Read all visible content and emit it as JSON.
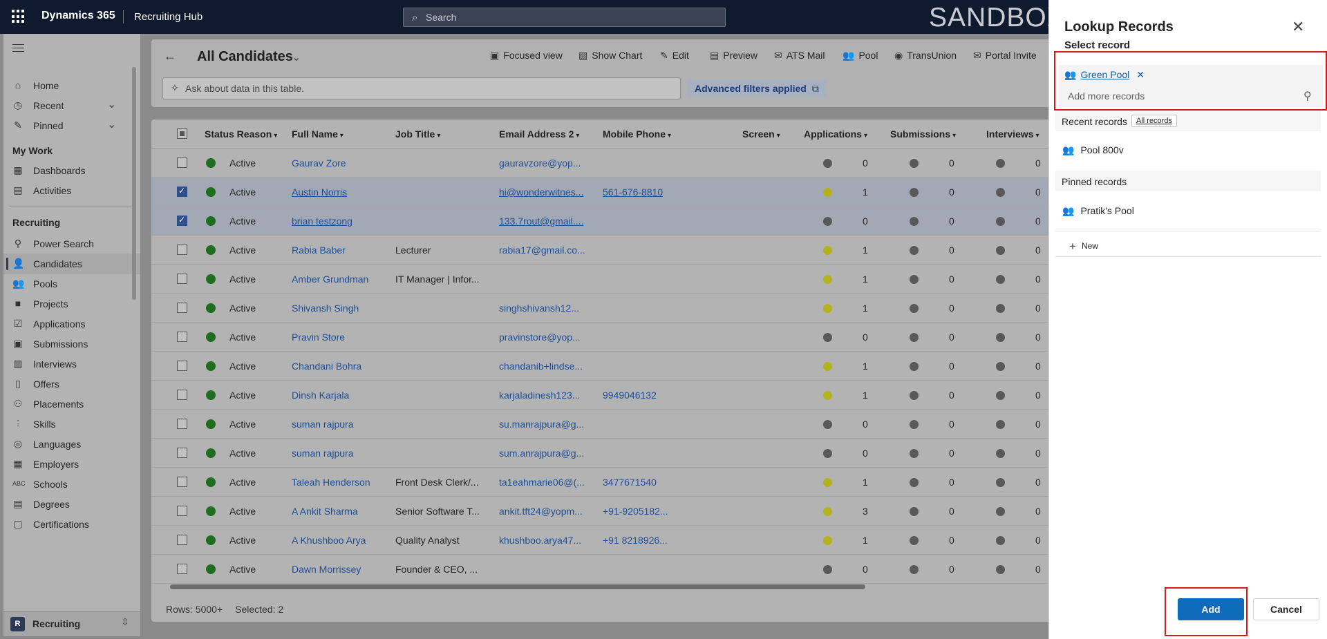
{
  "topbar": {
    "brand": "Dynamics 365",
    "app_name": "Recruiting Hub",
    "search_placeholder": "Search",
    "environment_banner": "SANDBOX"
  },
  "sidebar": {
    "items_top": [
      {
        "label": "Home",
        "icon": "home-icon"
      },
      {
        "label": "Recent",
        "icon": "clock-icon"
      },
      {
        "label": "Pinned",
        "icon": "pin-icon"
      }
    ],
    "section_my_work": "My Work",
    "items_my_work": [
      {
        "label": "Dashboards",
        "icon": "dashboard-icon"
      },
      {
        "label": "Activities",
        "icon": "clipboard-icon"
      }
    ],
    "section_recruiting": "Recruiting",
    "items_recruiting": [
      {
        "label": "Power Search",
        "icon": "magnifier-icon"
      },
      {
        "label": "Candidates",
        "icon": "person-icon"
      },
      {
        "label": "Pools",
        "icon": "people-group-icon"
      },
      {
        "label": "Projects",
        "icon": "briefcase-icon"
      },
      {
        "label": "Applications",
        "icon": "checklist-icon"
      },
      {
        "label": "Submissions",
        "icon": "inbox-icon"
      },
      {
        "label": "Interviews",
        "icon": "calendar-icon"
      },
      {
        "label": "Offers",
        "icon": "document-icon"
      },
      {
        "label": "Placements",
        "icon": "people-icon"
      },
      {
        "label": "Skills",
        "icon": "skills-icon"
      },
      {
        "label": "Languages",
        "icon": "globe-icon"
      },
      {
        "label": "Employers",
        "icon": "building-icon"
      },
      {
        "label": "Schools",
        "icon": "abc-icon"
      },
      {
        "label": "Degrees",
        "icon": "calendar-grid-icon"
      },
      {
        "label": "Certifications",
        "icon": "certificate-icon"
      }
    ],
    "active_item": "Candidates",
    "area_badge": "R",
    "area_label": "Recruiting"
  },
  "header": {
    "view_title": "All Candidates",
    "commands": [
      {
        "label": "Focused view",
        "icon": "focused-view-icon"
      },
      {
        "label": "Show Chart",
        "icon": "chart-icon"
      },
      {
        "label": "Edit",
        "icon": "pencil-icon"
      },
      {
        "label": "Preview",
        "icon": "preview-icon"
      },
      {
        "label": "ATS Mail",
        "icon": "mail-icon"
      },
      {
        "label": "Pool",
        "icon": "people-group-icon"
      },
      {
        "label": "TransUnion",
        "icon": "transunion-icon"
      },
      {
        "label": "Portal Invite",
        "icon": "envelope-icon"
      }
    ],
    "ask_placeholder": "Ask about data in this table.",
    "filters_label": "Advanced filters applied"
  },
  "grid": {
    "columns": [
      "Status Reason",
      "Full Name",
      "Job Title",
      "Email Address 2",
      "Mobile Phone",
      "Screen",
      "Applications",
      "Submissions",
      "Interviews"
    ],
    "rows": [
      {
        "status": "Active",
        "name": "Gaurav Zore",
        "job": "",
        "email": "gauravzore@yop...",
        "phone": "",
        "selected": false,
        "apps": "0",
        "apps_color": "gray",
        "subs": "0",
        "ints": "0"
      },
      {
        "status": "Active",
        "name": "Austin Norris",
        "job": "",
        "email": "hi@wonderwitnes...",
        "phone": "561-676-8810",
        "selected": true,
        "apps": "1",
        "apps_color": "yellow",
        "subs": "0",
        "ints": "0"
      },
      {
        "status": "Active",
        "name": "brian testzong",
        "job": "",
        "email": "133.7rout@gmail....",
        "phone": "",
        "selected": true,
        "apps": "0",
        "apps_color": "gray",
        "subs": "0",
        "ints": "0"
      },
      {
        "status": "Active",
        "name": "Rabia Baber",
        "job": "Lecturer",
        "email": "rabia17@gmail.co...",
        "phone": "",
        "selected": false,
        "apps": "1",
        "apps_color": "yellow",
        "subs": "0",
        "ints": "0"
      },
      {
        "status": "Active",
        "name": "Amber Grundman",
        "job": "IT Manager | Infor...",
        "email": "",
        "phone": "",
        "selected": false,
        "apps": "1",
        "apps_color": "yellow",
        "subs": "0",
        "ints": "0"
      },
      {
        "status": "Active",
        "name": "Shivansh Singh",
        "job": "",
        "email": "singhshivansh12...",
        "phone": "",
        "selected": false,
        "apps": "1",
        "apps_color": "yellow",
        "subs": "0",
        "ints": "0"
      },
      {
        "status": "Active",
        "name": "Pravin Store",
        "job": "",
        "email": "pravinstore@yop...",
        "phone": "",
        "selected": false,
        "apps": "0",
        "apps_color": "gray",
        "subs": "0",
        "ints": "0"
      },
      {
        "status": "Active",
        "name": "Chandani Bohra",
        "job": "",
        "email": "chandanib+lindse...",
        "phone": "",
        "selected": false,
        "apps": "1",
        "apps_color": "yellow",
        "subs": "0",
        "ints": "0"
      },
      {
        "status": "Active",
        "name": "Dinsh Karjala",
        "job": "",
        "email": "karjaladinesh123...",
        "phone": "9949046132",
        "selected": false,
        "apps": "1",
        "apps_color": "yellow",
        "subs": "0",
        "ints": "0"
      },
      {
        "status": "Active",
        "name": "suman rajpura",
        "job": "",
        "email": "su.manrajpura@g...",
        "phone": "",
        "selected": false,
        "apps": "0",
        "apps_color": "gray",
        "subs": "0",
        "ints": "0"
      },
      {
        "status": "Active",
        "name": "suman rajpura",
        "job": "",
        "email": "sum.anrajpura@g...",
        "phone": "",
        "selected": false,
        "apps": "0",
        "apps_color": "gray",
        "subs": "0",
        "ints": "0"
      },
      {
        "status": "Active",
        "name": "Taleah Henderson",
        "job": "Front Desk Clerk/...",
        "email": "ta1eahmarie06@(...",
        "phone": "3477671540",
        "selected": false,
        "apps": "1",
        "apps_color": "yellow",
        "subs": "0",
        "ints": "0"
      },
      {
        "status": "Active",
        "name": "A Ankit Sharma",
        "job": "Senior Software T...",
        "email": "ankit.tft24@yopm...",
        "phone": "+91-9205182...",
        "selected": false,
        "apps": "3",
        "apps_color": "yellow",
        "subs": "0",
        "ints": "0"
      },
      {
        "status": "Active",
        "name": "A Khushboo Arya",
        "job": "Quality Analyst",
        "email": "khushboo.arya47...",
        "phone": "+91 8218926...",
        "selected": false,
        "apps": "1",
        "apps_color": "yellow",
        "subs": "0",
        "ints": "0"
      },
      {
        "status": "Active",
        "name": "Dawn Morrissey",
        "job": "Founder & CEO, ...",
        "email": "",
        "phone": "",
        "selected": false,
        "apps": "0",
        "apps_color": "gray",
        "subs": "0",
        "ints": "0"
      }
    ],
    "footer_rows": "Rows: 5000+",
    "footer_selected": "Selected: 2"
  },
  "panel": {
    "title": "Lookup Records",
    "subtitle": "Select record",
    "selected_chip": "Green Pool",
    "add_more_placeholder": "Add more records",
    "recent_header": "Recent records",
    "all_records_label": "All records",
    "recent_items": [
      "Pool 800v"
    ],
    "pinned_header": "Pinned records",
    "pinned_items": [
      "Pratik's Pool"
    ],
    "new_label": "New",
    "add_label": "Add",
    "cancel_label": "Cancel"
  },
  "colors": {
    "topbar": "#0f1a2e",
    "accent_blue": "#0f6cbd",
    "highlight_red": "#d11b1b",
    "status_active": "#1f6e1f",
    "count_yellow": "#b6b21b",
    "count_gray": "#595959"
  }
}
